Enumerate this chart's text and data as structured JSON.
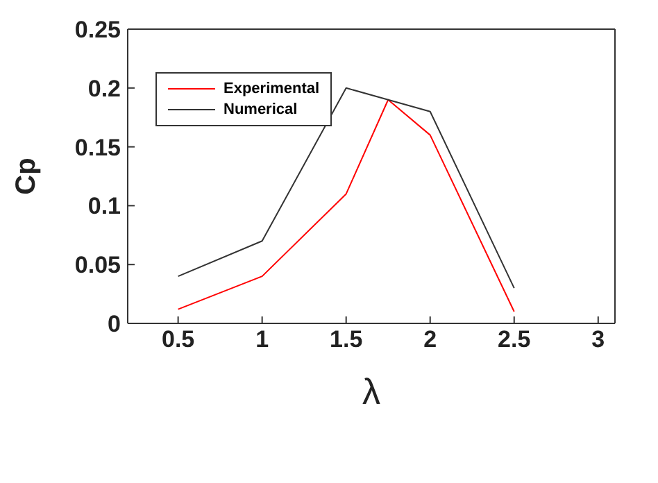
{
  "chart_data": {
    "type": "line",
    "xlabel": "λ",
    "ylabel": "Cp",
    "xlim": [
      0.2,
      3.1
    ],
    "xticks": [
      0.5,
      1,
      1.5,
      2,
      2.5,
      3
    ],
    "ylim": [
      0,
      0.25
    ],
    "yticks": [
      0,
      0.05,
      0.1,
      0.15,
      0.2,
      0.25
    ],
    "legend": "top left",
    "marker": "none",
    "line_style": "solid",
    "series": [
      {
        "name": "Experimental",
        "color": "#ff0000",
        "x": [
          0.5,
          1,
          1.5,
          1.75,
          2,
          2.5
        ],
        "values": [
          0.012,
          0.04,
          0.11,
          0.19,
          0.16,
          0.01
        ]
      },
      {
        "name": "Numerical",
        "color": "#333333",
        "x": [
          0.5,
          1,
          1.5,
          1.75,
          2,
          2.5
        ],
        "values": [
          0.04,
          0.07,
          0.2,
          0.19,
          0.18,
          0.03
        ]
      }
    ]
  }
}
